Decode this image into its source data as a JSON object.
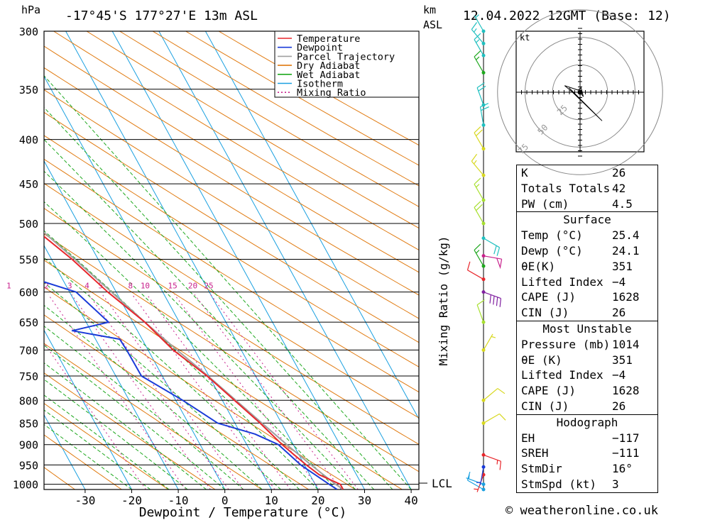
{
  "header": {
    "location": "-17°45'S 177°27'E 13m ASL",
    "datetime": "12.04.2022 12GMT (Base: 12)",
    "hpa": "hPa",
    "km": "km",
    "asl": "ASL"
  },
  "footer": {
    "copyright": "© weatheronline.co.uk"
  },
  "chart_data": {
    "type": "skew-t",
    "xlabel": "Dewpoint / Temperature (°C)",
    "mixing_label": "Mixing Ratio (g/kg)",
    "x_ticks": [
      -30,
      -20,
      -10,
      0,
      10,
      20,
      30,
      40
    ],
    "pressure_levels": [
      300,
      350,
      400,
      450,
      500,
      550,
      600,
      650,
      700,
      750,
      800,
      850,
      900,
      950,
      1000
    ],
    "mixing_ratios": [
      "1",
      "2",
      "3",
      "4",
      "5",
      "8",
      "10",
      "15",
      "20",
      "25"
    ],
    "mixing_values": [
      1,
      2,
      3,
      4,
      5,
      8,
      10,
      15,
      20,
      25
    ],
    "lcl_label": "LCL",
    "lcl_pressure": 997,
    "legend": [
      "Temperature",
      "Dewpoint",
      "Parcel Trajectory",
      "Dry Adiabat",
      "Wet Adiabat",
      "Isotherm",
      "Mixing Ratio"
    ],
    "colors": {
      "temperature": "#e8262b",
      "dewpoint": "#1a3bd8",
      "parcel": "#a0a0a0",
      "dry_adiabat": "#e07a10",
      "wet_adiabat": "#1ea81e",
      "isotherm": "#1aa0e0",
      "mixing_ratio": "#c8208c"
    },
    "temperature": [
      [
        1014,
        25.4
      ],
      [
        1000,
        25.4
      ],
      [
        975,
        22.0
      ],
      [
        950,
        20.4
      ],
      [
        925,
        19.0
      ],
      [
        900,
        17.6
      ],
      [
        850,
        15.4
      ],
      [
        800,
        12.6
      ],
      [
        750,
        9.6
      ],
      [
        700,
        5.4
      ],
      [
        650,
        2.6
      ],
      [
        600,
        -1.8
      ],
      [
        550,
        -5.6
      ],
      [
        500,
        -10.8
      ],
      [
        475,
        -13.2
      ],
      [
        450,
        -15.6
      ],
      [
        425,
        -19.6
      ],
      [
        400,
        -23.6
      ],
      [
        380,
        -26.4
      ],
      [
        370,
        -28.8
      ],
      [
        350,
        -34.0
      ],
      [
        325,
        -39.5
      ],
      [
        300,
        -46.2
      ]
    ],
    "dewpoint": [
      [
        1014,
        24.1
      ],
      [
        1000,
        23.0
      ],
      [
        950,
        19.2
      ],
      [
        900,
        16.8
      ],
      [
        875,
        13.0
      ],
      [
        850,
        6.3
      ],
      [
        800,
        1.5
      ],
      [
        750,
        -4.5
      ],
      [
        700,
        -4.6
      ],
      [
        680,
        -4.8
      ],
      [
        665,
        -14.0
      ],
      [
        650,
        -5.2
      ],
      [
        600,
        -8.6
      ],
      [
        575,
        -17.5
      ],
      [
        550,
        -24.0
      ],
      [
        525,
        -25.0
      ],
      [
        500,
        -21.5
      ],
      [
        490,
        -29.8
      ],
      [
        470,
        -37.5
      ],
      [
        460,
        -26.3
      ],
      [
        450,
        -32.8
      ],
      [
        440,
        -39.8
      ],
      [
        425,
        -33.8
      ],
      [
        400,
        -43.5
      ],
      [
        385,
        -58.5
      ],
      [
        380,
        -48.7
      ],
      [
        370,
        -60.0
      ],
      [
        350,
        -67.5
      ],
      [
        320,
        -74.5
      ],
      [
        300,
        -68.0
      ]
    ],
    "parcel": [
      [
        1014,
        25.4
      ],
      [
        997,
        24.2
      ],
      [
        950,
        21.4
      ],
      [
        900,
        18.6
      ],
      [
        850,
        15.8
      ],
      [
        800,
        12.9
      ],
      [
        750,
        9.8
      ],
      [
        700,
        6.2
      ],
      [
        650,
        2.6
      ],
      [
        600,
        -1.0
      ],
      [
        550,
        -5.0
      ],
      [
        500,
        -9.6
      ],
      [
        450,
        -15.0
      ],
      [
        400,
        -21.8
      ],
      [
        380,
        -25.5
      ]
    ],
    "wind_barbs": [
      {
        "p": 1014,
        "dir": 300,
        "kt": 10,
        "color": "#1aa0e0"
      },
      {
        "p": 1000,
        "dir": 290,
        "kt": 5,
        "color": "#1aa0e0"
      },
      {
        "p": 975,
        "dir": 200,
        "kt": 5,
        "color": "#e8262b"
      },
      {
        "p": 955,
        "dir": 190,
        "kt": 5,
        "color": "#1a3bd8"
      },
      {
        "p": 925,
        "dir": 110,
        "kt": 15,
        "color": "#e8262b"
      },
      {
        "p": 850,
        "dir": 60,
        "kt": 10,
        "color": "#d8d820"
      },
      {
        "p": 800,
        "dir": 50,
        "kt": 10,
        "color": "#d8d820"
      },
      {
        "p": 700,
        "dir": 30,
        "kt": 5,
        "color": "#d8d820"
      },
      {
        "p": 650,
        "dir": 340,
        "kt": 10,
        "color": "#a8e030"
      },
      {
        "p": 600,
        "dir": 110,
        "kt": 40,
        "color": "#8020a0"
      },
      {
        "p": 580,
        "dir": 300,
        "kt": 10,
        "color": "#e8262b"
      },
      {
        "p": 560,
        "dir": 330,
        "kt": 15,
        "color": "#1ea81e"
      },
      {
        "p": 545,
        "dir": 100,
        "kt": 50,
        "color": "#c8208c"
      },
      {
        "p": 520,
        "dir": 120,
        "kt": 20,
        "color": "#20c0c0"
      },
      {
        "p": 500,
        "dir": 330,
        "kt": 20,
        "color": "#a8e030"
      },
      {
        "p": 470,
        "dir": 330,
        "kt": 15,
        "color": "#a8e030"
      },
      {
        "p": 440,
        "dir": 320,
        "kt": 15,
        "color": "#d8d820"
      },
      {
        "p": 410,
        "dir": 330,
        "kt": 20,
        "color": "#d8d820"
      },
      {
        "p": 385,
        "dir": 350,
        "kt": 20,
        "color": "#20c0c0"
      },
      {
        "p": 365,
        "dir": 340,
        "kt": 20,
        "color": "#20c0c0"
      },
      {
        "p": 335,
        "dir": 330,
        "kt": 15,
        "color": "#1ea81e"
      },
      {
        "p": 320,
        "dir": 330,
        "kt": 15,
        "color": "#20c0c0"
      },
      {
        "p": 310,
        "dir": 320,
        "kt": 15,
        "color": "#20c0c0"
      },
      {
        "p": 300,
        "dir": 330,
        "kt": 5,
        "color": "#20c0c0"
      }
    ],
    "hodograph": {
      "unit": "kt",
      "ring_labels": [
        "25",
        "50",
        "75"
      ],
      "points": [
        [
          0,
          0
        ],
        [
          0.5,
          1
        ],
        [
          1.5,
          2
        ],
        [
          3,
          4
        ],
        [
          1,
          -4
        ],
        [
          -2,
          -2
        ],
        [
          -14,
          -6
        ],
        [
          -8,
          -1
        ],
        [
          20,
          26
        ],
        [
          -10,
          -4
        ]
      ]
    }
  },
  "stats": {
    "indices": [
      {
        "label": "K",
        "value": "26"
      },
      {
        "label": "Totals Totals",
        "value": "42"
      },
      {
        "label": "PW (cm)",
        "value": "4.5"
      }
    ],
    "surface": {
      "title": "Surface",
      "rows": [
        {
          "label": "Temp (°C)",
          "value": "25.4"
        },
        {
          "label": "Dewp (°C)",
          "value": "24.1"
        },
        {
          "label": "θE(K)",
          "value": "351"
        },
        {
          "label": "Lifted Index",
          "value": "−4"
        },
        {
          "label": "CAPE (J)",
          "value": "1628"
        },
        {
          "label": "CIN (J)",
          "value": "26"
        }
      ]
    },
    "most_unstable": {
      "title": "Most Unstable",
      "rows": [
        {
          "label": "Pressure (mb)",
          "value": "1014"
        },
        {
          "label": "θE (K)",
          "value": "351"
        },
        {
          "label": "Lifted Index",
          "value": "−4"
        },
        {
          "label": "CAPE (J)",
          "value": "1628"
        },
        {
          "label": "CIN (J)",
          "value": "26"
        }
      ]
    },
    "hodograph": {
      "title": "Hodograph",
      "rows": [
        {
          "label": "EH",
          "value": "−117"
        },
        {
          "label": "SREH",
          "value": "−111"
        },
        {
          "label": "StmDir",
          "value": "16°"
        },
        {
          "label": "StmSpd (kt)",
          "value": "3"
        }
      ]
    }
  }
}
